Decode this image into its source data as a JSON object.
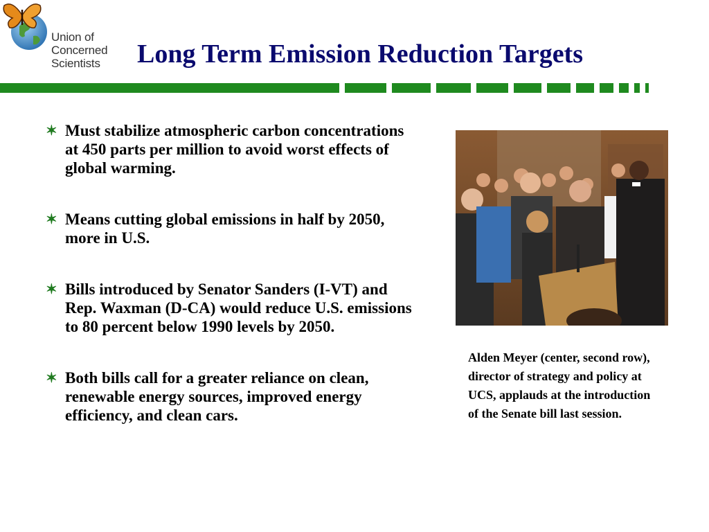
{
  "logo": {
    "lines": [
      "Union of",
      "Concerned",
      "Scientists"
    ],
    "icons": [
      "butterfly-icon",
      "globe-icon"
    ]
  },
  "slide": {
    "title": "Long Term Emission Reduction Targets"
  },
  "bullets": [
    "Must stabilize atmospheric carbon concentrations at 450 parts per million to avoid worst effects of global warming.",
    "Means cutting global emissions in half by 2050, more in U.S.",
    "Bills introduced by Senator Sanders (I-VT) and Rep. Waxman (D-CA) would reduce U.S. emissions to 80 percent below 1990 levels by 2050.",
    "Both bills call for a greater reliance on clean, renewable energy sources, improved energy efficiency, and clean cars."
  ],
  "bullet_marker": "✶",
  "photo": {
    "caption": "Alden Meyer (center, second row), director of strategy and policy at UCS, applauds at the introduction of the Senate bill last session."
  },
  "colors": {
    "title": "#0a0a6e",
    "accent_green": "#1f8a1f"
  }
}
